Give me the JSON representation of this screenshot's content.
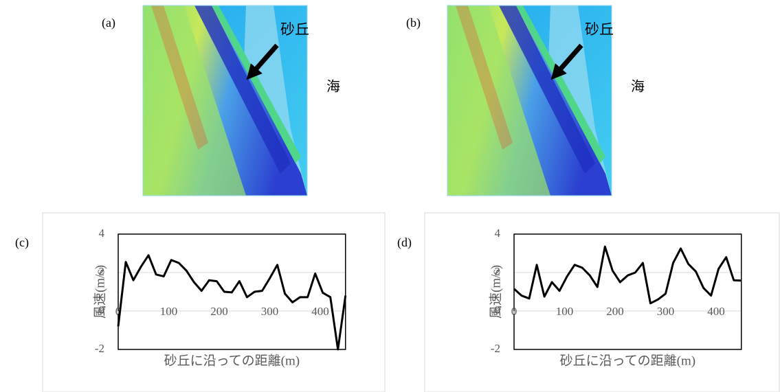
{
  "panels": [
    {
      "label": "(a)",
      "dune": "砂丘",
      "sea": "海"
    },
    {
      "label": "(b)",
      "dune": "砂丘",
      "sea": "海"
    }
  ],
  "chart_data": [
    {
      "type": "line",
      "label": "(c)",
      "xlabel": "砂丘に沿っての距離(m)",
      "ylabel": "風速(m/s)",
      "x": [
        0,
        15,
        30,
        45,
        60,
        75,
        90,
        105,
        120,
        135,
        150,
        165,
        180,
        195,
        210,
        225,
        240,
        255,
        270,
        285,
        300,
        315,
        330,
        345,
        360,
        375,
        390,
        405,
        420,
        435,
        450
      ],
      "series": [
        {
          "color": "#000000",
          "values": [
            -0.8,
            2.55,
            1.6,
            2.3,
            2.9,
            1.9,
            1.8,
            2.65,
            2.5,
            2.1,
            1.5,
            1.05,
            1.6,
            1.55,
            1.0,
            0.97,
            1.55,
            0.72,
            1.0,
            1.05,
            1.7,
            2.4,
            0.9,
            0.45,
            0.72,
            0.72,
            1.95,
            0.95,
            0.72,
            -2.0,
            0.8
          ]
        }
      ],
      "xlim": [
        0,
        450
      ],
      "xticks": [
        0,
        100,
        200,
        300,
        400
      ],
      "ylim": [
        -2,
        4
      ],
      "yticks": [
        -2,
        0,
        2,
        4
      ],
      "grid": true
    },
    {
      "type": "line",
      "label": "(d)",
      "xlabel": "砂丘に沿っての距離(m)",
      "ylabel": "風速(m/s)",
      "x": [
        0,
        15,
        30,
        45,
        60,
        75,
        90,
        105,
        120,
        135,
        150,
        165,
        180,
        195,
        210,
        225,
        240,
        255,
        270,
        285,
        300,
        315,
        330,
        345,
        360,
        375,
        390,
        405,
        420,
        435,
        450
      ],
      "series": [
        {
          "color": "#000000",
          "values": [
            1.15,
            0.8,
            0.65,
            2.4,
            0.75,
            1.5,
            1.05,
            1.8,
            2.4,
            2.25,
            1.85,
            1.25,
            3.35,
            2.1,
            1.5,
            1.85,
            2.0,
            2.5,
            0.4,
            0.6,
            0.9,
            2.5,
            3.25,
            2.45,
            2.05,
            1.2,
            0.8,
            2.2,
            2.8,
            1.6,
            1.58
          ]
        }
      ],
      "xlim": [
        0,
        450
      ],
      "xticks": [
        0,
        100,
        200,
        300,
        400
      ],
      "ylim": [
        -2,
        4
      ],
      "yticks": [
        -2,
        0,
        2,
        4
      ],
      "grid": true
    }
  ]
}
